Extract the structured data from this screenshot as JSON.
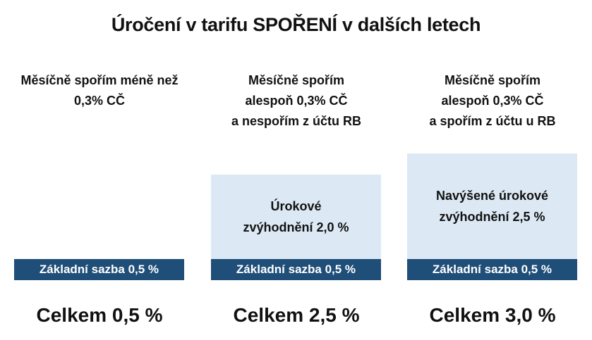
{
  "chart_data": {
    "type": "bar",
    "title": "Úročení v tarifu SPOŘENÍ v dalších letech",
    "categories": [
      "Měsíčně spořím méně než\n0,3% CČ",
      "Měsíčně spořím\nalespoň 0,3% CČ\na nespořím z účtu RB",
      "Měsíčně spořím\nalespoň 0,3% CČ\na spořím z účtu u RB"
    ],
    "stacked": true,
    "series": [
      {
        "label": "Základní sazba 0,5 %",
        "values": [
          0.5,
          0.5,
          0.5
        ],
        "labels": [
          "Základní sazba 0,5 %",
          "Základní sazba 0,5 %",
          "Základní sazba 0,5 %"
        ],
        "color": "#1f4e79"
      },
      {
        "values": [
          0,
          2.0,
          2.5
        ],
        "labels": [
          "",
          "Úrokové\nzvýhodnění 2,0 %",
          "Navýšené úrokové\nzvýhodnění 2,5 %"
        ],
        "color": "#dce9f4"
      }
    ],
    "totals": [
      "Celkem 0,5 %",
      "Celkem 2,5 %",
      "Celkem 3,0 %"
    ],
    "total_values": [
      0.5,
      2.5,
      3.0
    ],
    "legend": "none",
    "grid": false
  }
}
